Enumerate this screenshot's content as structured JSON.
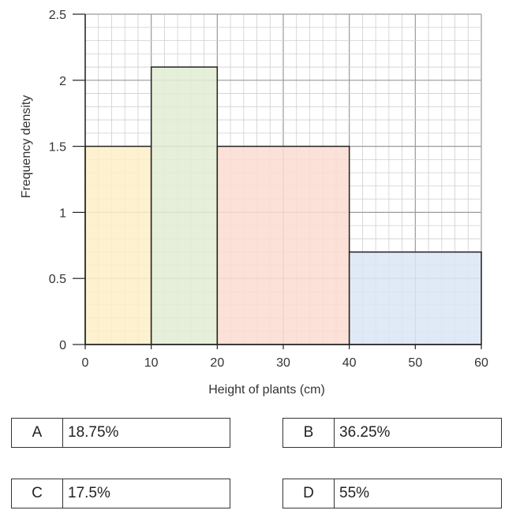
{
  "chart_data": {
    "type": "histogram",
    "xlabel": "Height of plants (cm)",
    "ylabel": "Frequency density",
    "xlim": [
      0,
      60
    ],
    "ylim": [
      0,
      2.5
    ],
    "x_ticks": [
      0,
      10,
      20,
      30,
      40,
      50,
      60
    ],
    "y_ticks": [
      0,
      0.5,
      1,
      1.5,
      2,
      2.5
    ],
    "y_tick_labels": [
      "0",
      "0.5",
      "1",
      "1.5",
      "2",
      "2.5"
    ],
    "grid": true,
    "bars": [
      {
        "x0": 0,
        "x1": 10,
        "value": 1.5,
        "color": "#fdeec7"
      },
      {
        "x0": 10,
        "x1": 20,
        "value": 2.1,
        "color": "#e2ecd3"
      },
      {
        "x0": 20,
        "x1": 40,
        "value": 1.5,
        "color": "#fadcd0"
      },
      {
        "x0": 40,
        "x1": 60,
        "value": 0.7,
        "color": "#dbe6f4"
      }
    ]
  },
  "options": [
    {
      "letter": "A",
      "value": "18.75%"
    },
    {
      "letter": "B",
      "value": "36.25%"
    },
    {
      "letter": "C",
      "value": "17.5%"
    },
    {
      "letter": "D",
      "value": "55%"
    }
  ]
}
